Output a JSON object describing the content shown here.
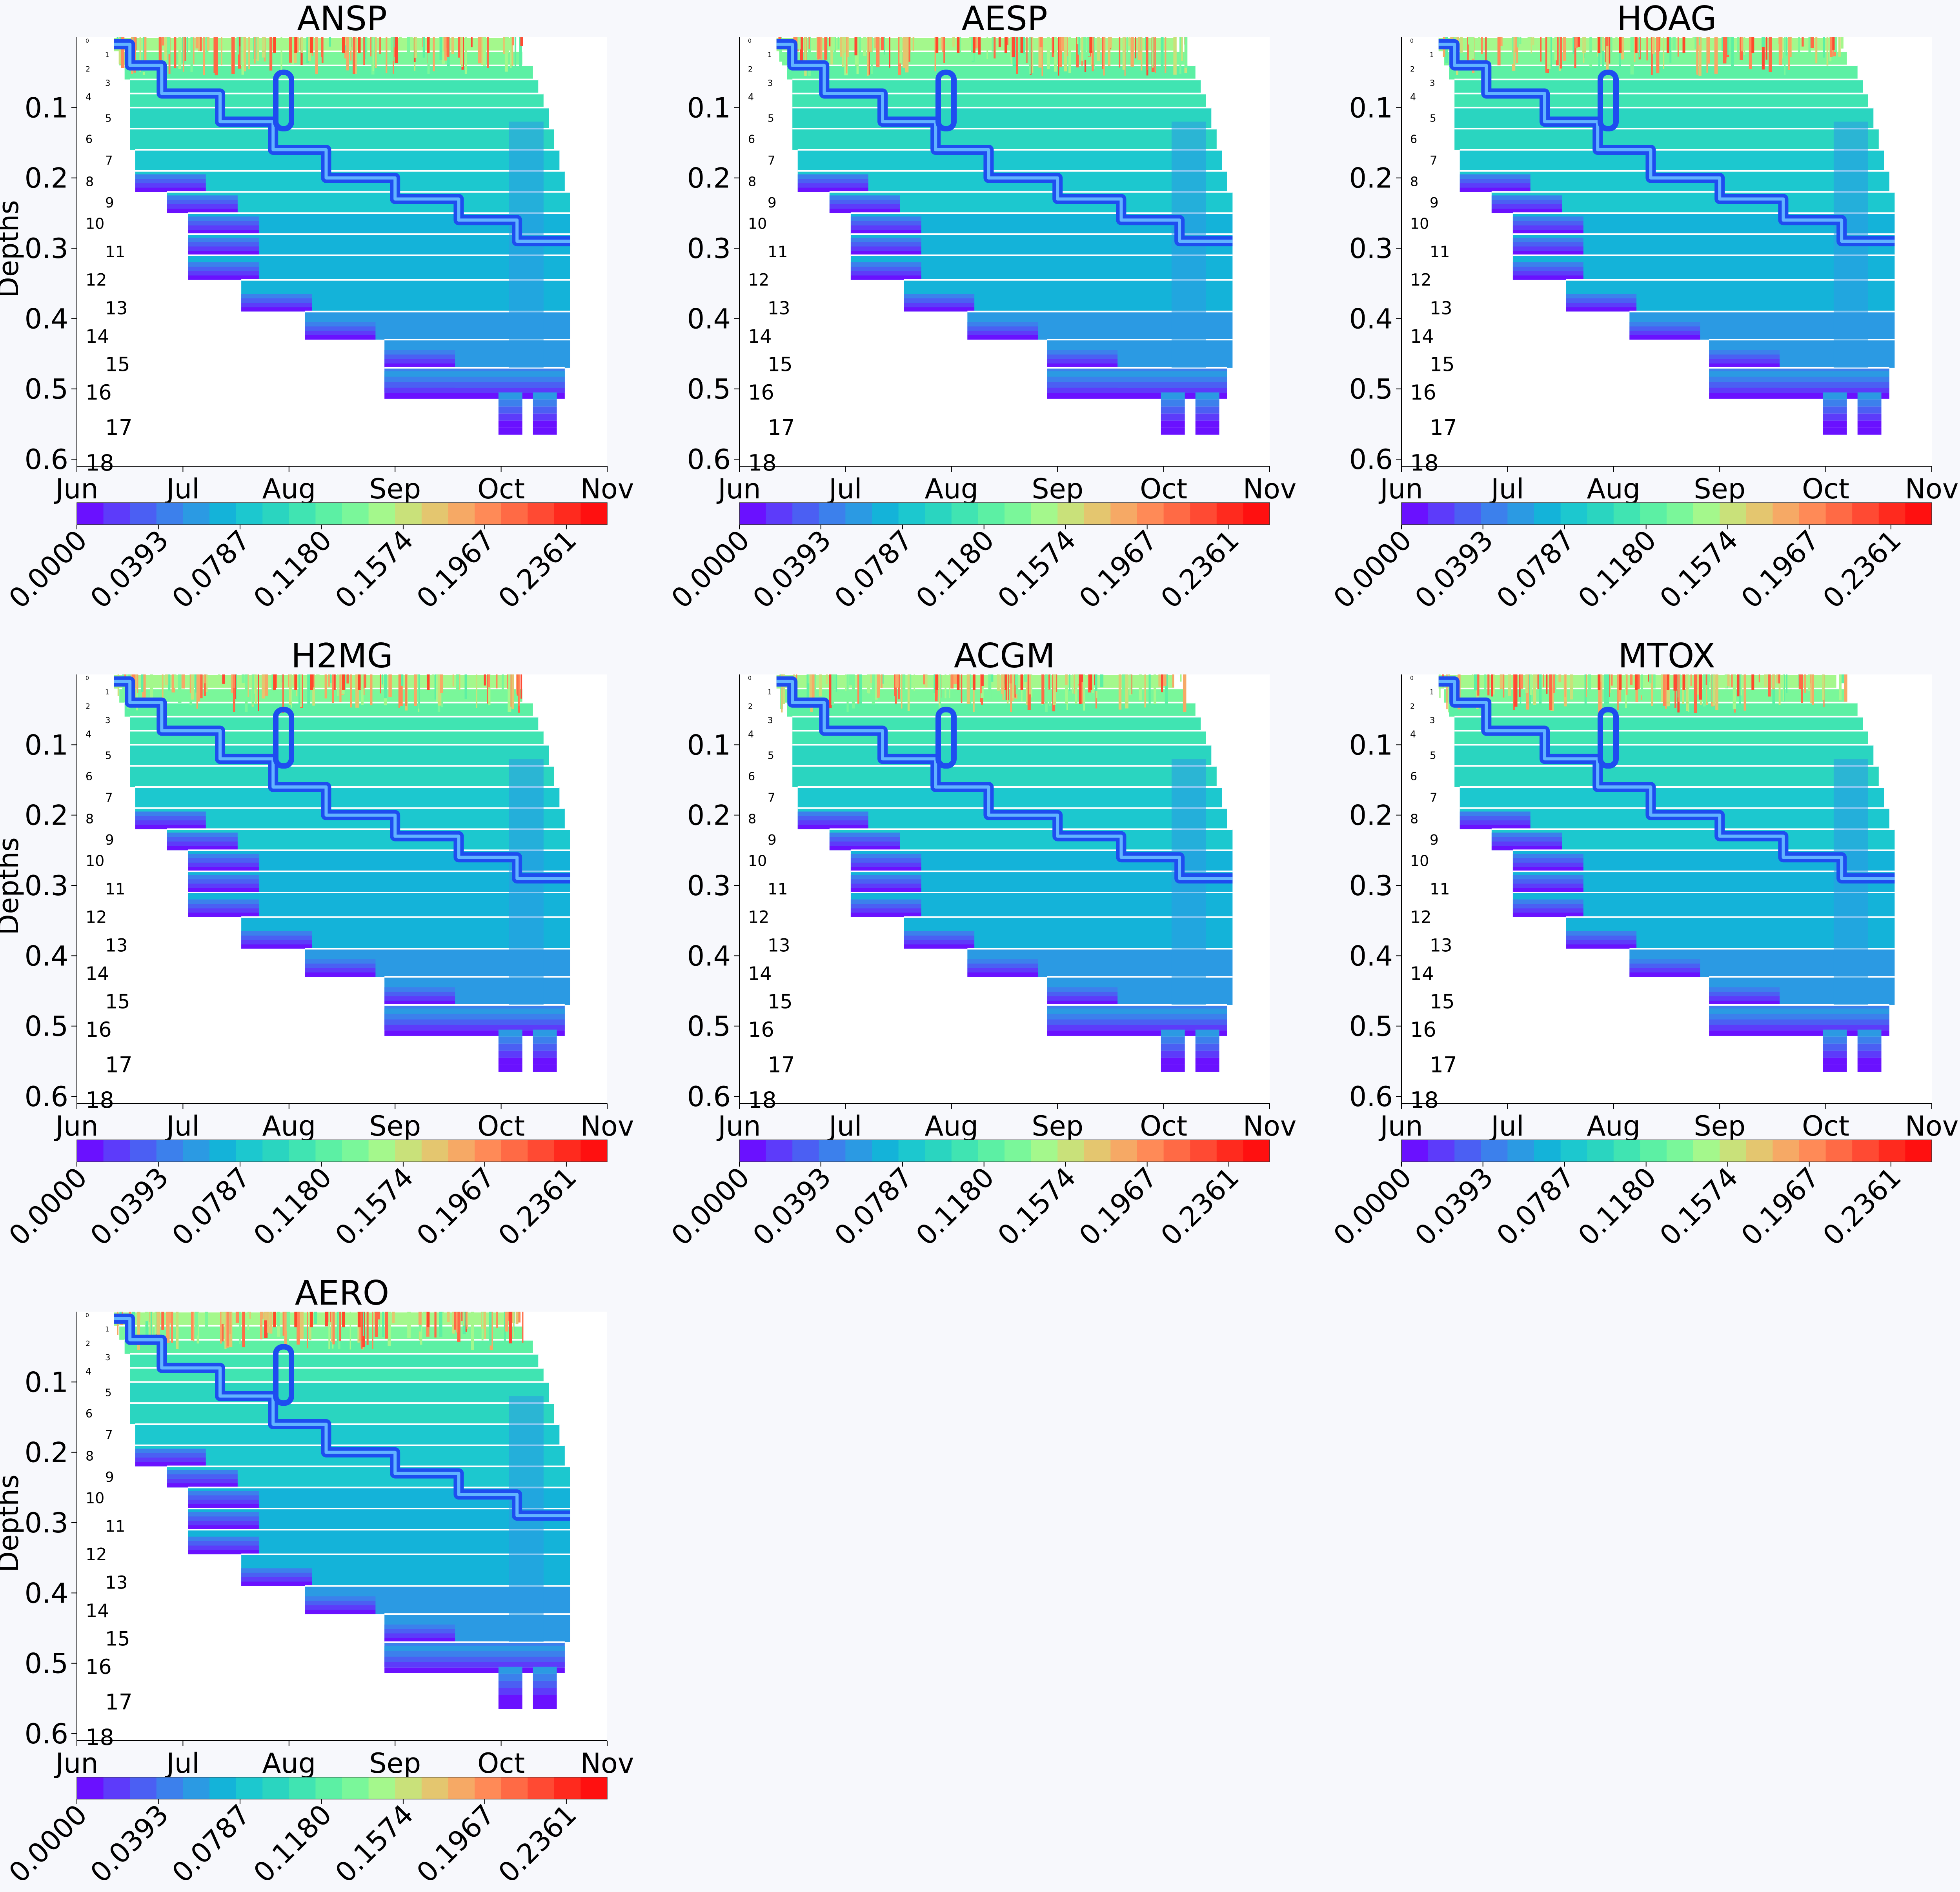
{
  "figure": {
    "colorbar_ticks": [
      "0.0000",
      "0.0393",
      "0.0787",
      "0.1180",
      "0.1574",
      "0.1967",
      "0.2361"
    ],
    "colormap": [
      "#6a11ff",
      "#5d3bfa",
      "#4b5ff3",
      "#3c80ec",
      "#2b9ae3",
      "#14b3d9",
      "#1cc8cf",
      "#2ad5c0",
      "#40e4b2",
      "#5cf0a4",
      "#7af79a",
      "#a4f88c",
      "#c9e17a",
      "#e4c66f",
      "#f6a965",
      "#ff8a57",
      "#ff6a45",
      "#ff4a33",
      "#ff2a1e",
      "#ff1010"
    ]
  },
  "chart_data": [
    {
      "type": "heatmap",
      "title": "ANSP",
      "ylabel": "Depths",
      "x_ticks": [
        "Jun",
        "Jul",
        "Aug",
        "Sep",
        "Oct",
        "Nov"
      ],
      "y_ticks": [
        "0.1",
        "0.2",
        "0.3",
        "0.4",
        "0.5",
        "0.6"
      ],
      "ylim": [
        0.0,
        0.61
      ],
      "layer_labels": [
        "0",
        "1",
        "2",
        "3",
        "4",
        "5",
        "6",
        "7",
        "8",
        "9",
        "10",
        "11",
        "12",
        "13",
        "14",
        "15",
        "16",
        "17",
        "18"
      ],
      "layer_depths": [
        0.005,
        0.025,
        0.045,
        0.065,
        0.085,
        0.115,
        0.145,
        0.175,
        0.205,
        0.235,
        0.265,
        0.305,
        0.345,
        0.385,
        0.425,
        0.465,
        0.505,
        0.555,
        0.605
      ],
      "colorbar_range": [
        0.0,
        0.2558
      ],
      "step_line_depths": [
        0.03,
        0.04,
        0.05,
        0.09,
        0.13,
        0.17,
        0.2,
        0.23,
        0.26,
        0.29,
        0.33
      ]
    },
    {
      "type": "heatmap",
      "title": "AESP",
      "ylabel": "",
      "x_ticks": [
        "Jun",
        "Jul",
        "Aug",
        "Sep",
        "Oct",
        "Nov"
      ],
      "y_ticks": [
        "0.1",
        "0.2",
        "0.3",
        "0.4",
        "0.5",
        "0.6"
      ],
      "ylim": [
        0.0,
        0.61
      ],
      "layer_labels": [
        "0",
        "1",
        "2",
        "3",
        "4",
        "5",
        "6",
        "7",
        "8",
        "9",
        "10",
        "11",
        "12",
        "13",
        "14",
        "15",
        "16",
        "17",
        "18"
      ],
      "colorbar_range": [
        0.0,
        0.2558
      ]
    },
    {
      "type": "heatmap",
      "title": "HOAG",
      "ylabel": "",
      "x_ticks": [
        "Jun",
        "Jul",
        "Aug",
        "Sep",
        "Oct",
        "Nov"
      ],
      "y_ticks": [
        "0.1",
        "0.2",
        "0.3",
        "0.4",
        "0.5",
        "0.6"
      ],
      "ylim": [
        0.0,
        0.61
      ],
      "layer_labels": [
        "0",
        "1",
        "2",
        "3",
        "4",
        "5",
        "6",
        "7",
        "8",
        "9",
        "10",
        "11",
        "12",
        "13",
        "14",
        "15",
        "16",
        "17",
        "18"
      ],
      "colorbar_range": [
        0.0,
        0.2558
      ]
    },
    {
      "type": "heatmap",
      "title": "H2MG",
      "ylabel": "Depths",
      "x_ticks": [
        "Jun",
        "Jul",
        "Aug",
        "Sep",
        "Oct",
        "Nov"
      ],
      "y_ticks": [
        "0.1",
        "0.2",
        "0.3",
        "0.4",
        "0.5",
        "0.6"
      ],
      "ylim": [
        0.0,
        0.61
      ],
      "layer_labels": [
        "0",
        "1",
        "2",
        "3",
        "4",
        "5",
        "6",
        "7",
        "8",
        "9",
        "10",
        "11",
        "12",
        "13",
        "14",
        "15",
        "16",
        "17",
        "18"
      ],
      "colorbar_range": [
        0.0,
        0.2558
      ]
    },
    {
      "type": "heatmap",
      "title": "ACGM",
      "ylabel": "",
      "x_ticks": [
        "Jun",
        "Jul",
        "Aug",
        "Sep",
        "Oct",
        "Nov"
      ],
      "y_ticks": [
        "0.1",
        "0.2",
        "0.3",
        "0.4",
        "0.5",
        "0.6"
      ],
      "ylim": [
        0.0,
        0.61
      ],
      "layer_labels": [
        "0",
        "1",
        "2",
        "3",
        "4",
        "5",
        "6",
        "7",
        "8",
        "9",
        "10",
        "11",
        "12",
        "13",
        "14",
        "15",
        "16",
        "17",
        "18"
      ],
      "colorbar_range": [
        0.0,
        0.2558
      ]
    },
    {
      "type": "heatmap",
      "title": "MTOX",
      "ylabel": "",
      "x_ticks": [
        "Jun",
        "Jul",
        "Aug",
        "Sep",
        "Oct",
        "Nov"
      ],
      "y_ticks": [
        "0.1",
        "0.2",
        "0.3",
        "0.4",
        "0.5",
        "0.6"
      ],
      "ylim": [
        0.0,
        0.61
      ],
      "layer_labels": [
        "0",
        "1",
        "2",
        "3",
        "4",
        "5",
        "6",
        "7",
        "8",
        "9",
        "10",
        "11",
        "12",
        "13",
        "14",
        "15",
        "16",
        "17",
        "18"
      ],
      "colorbar_range": [
        0.0,
        0.2558
      ]
    },
    {
      "type": "heatmap",
      "title": "AERO",
      "ylabel": "Depths",
      "x_ticks": [
        "Jun",
        "Jul",
        "Aug",
        "Sep",
        "Oct",
        "Nov"
      ],
      "y_ticks": [
        "0.1",
        "0.2",
        "0.3",
        "0.4",
        "0.5",
        "0.6"
      ],
      "ylim": [
        0.0,
        0.61
      ],
      "layer_labels": [
        "0",
        "1",
        "2",
        "3",
        "4",
        "5",
        "6",
        "7",
        "8",
        "9",
        "10",
        "11",
        "12",
        "13",
        "14",
        "15",
        "16",
        "17",
        "18"
      ],
      "colorbar_range": [
        0.0,
        0.2558
      ]
    }
  ]
}
